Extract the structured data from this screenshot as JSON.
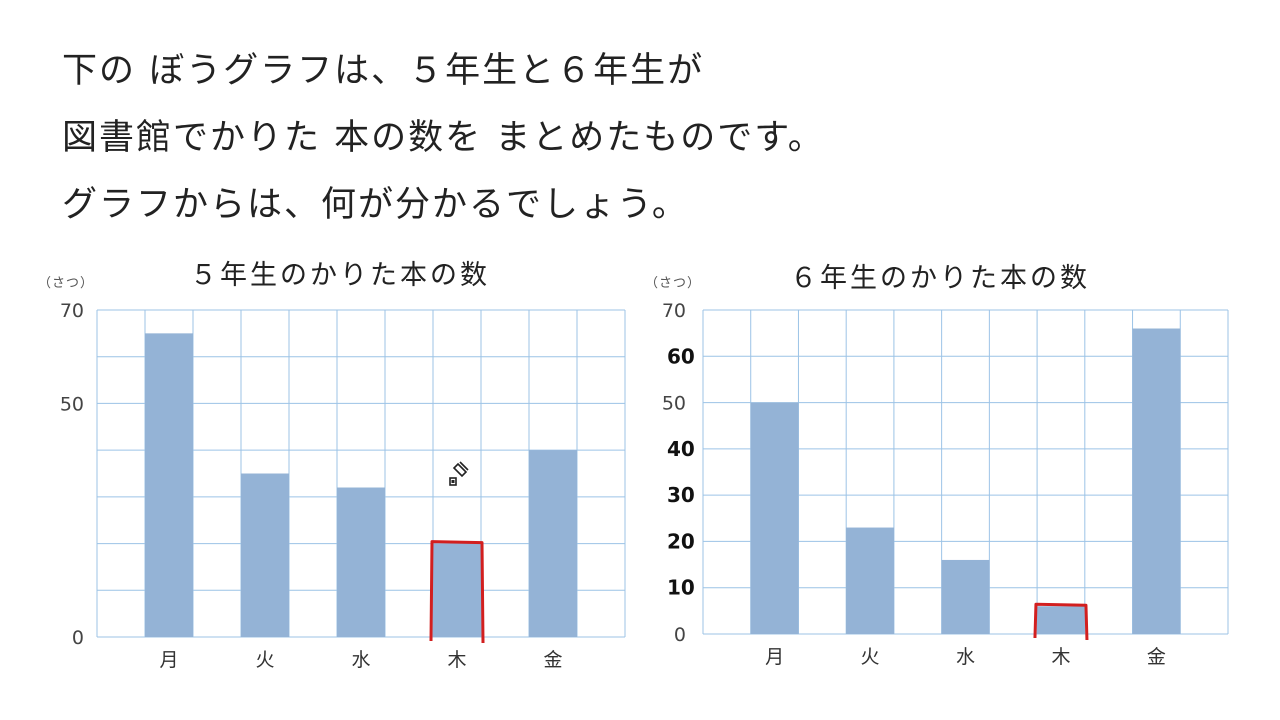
{
  "question": {
    "lines": [
      "下の ぼうグラフは、５年生と６年生が",
      "図書館でかりた 本の数を まとめたものです。",
      "グラフからは、何が分かるでしょう。"
    ]
  },
  "colors": {
    "bar": "#94b3d6",
    "grid": "#9cc3e6",
    "highlight": "#d21f1f",
    "ink": "#111111"
  },
  "cursor": {
    "icon": "pen-eraser-cursor-icon"
  },
  "chart_data": [
    {
      "type": "bar",
      "title": "５年生のかりた本の数",
      "unit_label": "（さつ）",
      "categories": [
        "月",
        "火",
        "水",
        "木",
        "金"
      ],
      "values": [
        65,
        35,
        32,
        20,
        40
      ],
      "ylim": [
        0,
        70
      ],
      "yticks": [
        0,
        50,
        70
      ],
      "handwritten_yticks": [],
      "grid": true,
      "highlighted_category": "木"
    },
    {
      "type": "bar",
      "title": "６年生のかりた本の数",
      "unit_label": "（さつ）",
      "categories": [
        "月",
        "火",
        "水",
        "木",
        "金"
      ],
      "values": [
        50,
        23,
        16,
        6,
        66
      ],
      "ylim": [
        0,
        70
      ],
      "yticks": [
        0,
        50,
        70
      ],
      "handwritten_yticks": [
        10,
        20,
        30,
        40,
        60
      ],
      "grid": true,
      "highlighted_category": "木"
    }
  ]
}
